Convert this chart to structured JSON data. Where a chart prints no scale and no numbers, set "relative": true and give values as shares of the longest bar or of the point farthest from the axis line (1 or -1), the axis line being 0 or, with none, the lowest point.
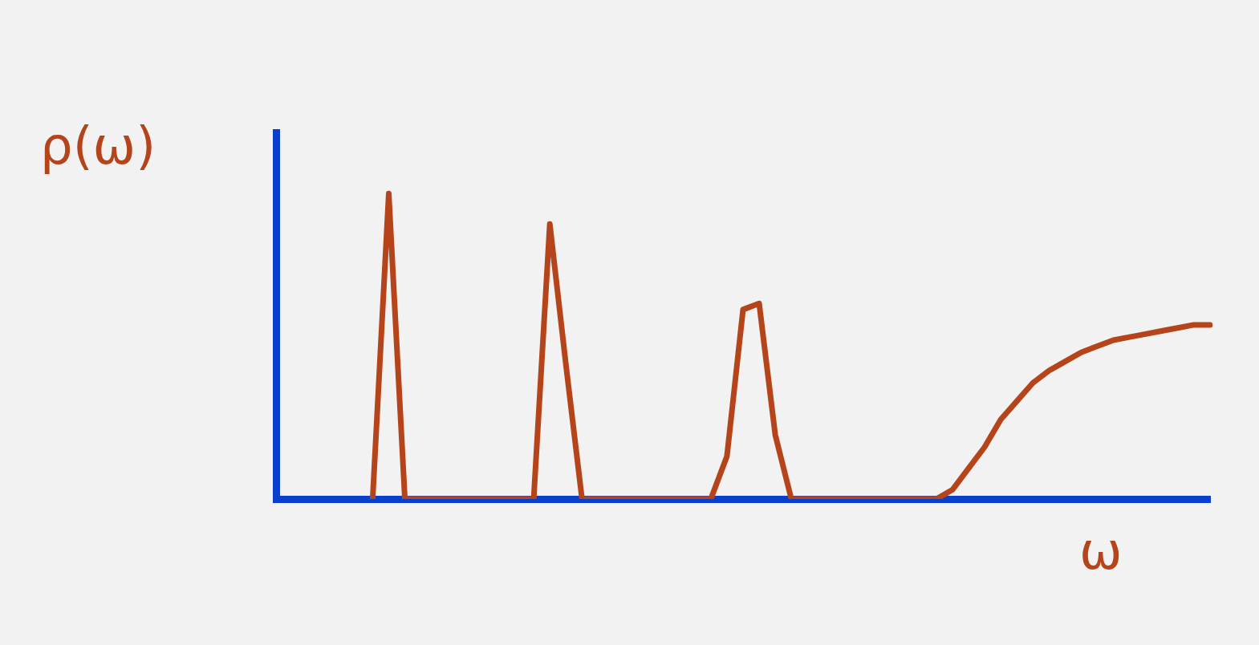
{
  "chart_data": {
    "type": "line",
    "relative": true,
    "xlabel": "ω",
    "ylabel": "ρ(ω)",
    "grid": false,
    "legend": false,
    "marker": "none",
    "line_style": "solid",
    "categories": [
      null,
      null,
      null,
      null,
      null,
      null,
      null,
      null,
      null,
      null,
      null,
      null,
      null,
      null,
      null,
      null,
      null,
      null,
      null,
      null,
      null,
      null,
      null,
      null,
      null,
      null,
      null,
      null,
      null,
      null,
      null,
      null,
      null,
      null,
      null,
      null,
      null,
      null,
      null,
      null,
      null,
      null,
      null,
      null,
      null,
      null,
      null,
      null,
      null,
      null,
      null,
      null,
      null,
      null,
      null,
      null,
      null,
      null,
      null
    ],
    "series": [
      {
        "color": "#b5441a",
        "values": [
          null,
          null,
          null,
          null,
          null,
          null,
          0,
          1,
          0,
          0,
          0,
          0,
          0,
          0,
          0,
          0,
          0,
          0.9,
          0.44,
          0,
          0,
          0,
          0,
          0,
          0,
          0,
          0,
          0,
          0.14,
          0.62,
          0.64,
          0.21,
          0,
          0,
          0,
          0,
          0,
          0,
          0,
          0,
          0,
          0,
          0.03,
          0.1,
          0.17,
          0.26,
          0.32,
          0.38,
          0.42,
          0.45,
          0.48,
          0.5,
          0.52,
          0.53,
          0.54,
          0.55,
          0.56,
          0.57,
          0.57
        ]
      }
    ]
  }
}
